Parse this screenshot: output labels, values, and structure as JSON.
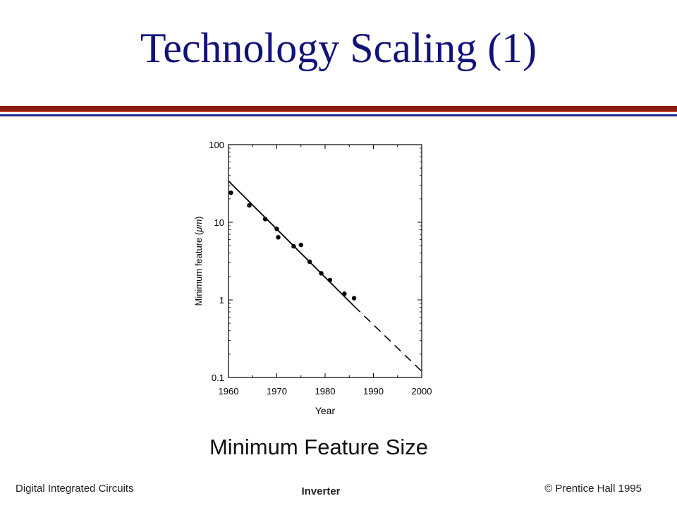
{
  "slide": {
    "title": "Technology Scaling (1)",
    "caption": "Minimum Feature Size"
  },
  "footer": {
    "left": "Digital Integrated Circuits",
    "center": "Inverter",
    "right": "© Prentice Hall 1995"
  },
  "colors": {
    "title": "#12127a",
    "rule_red": "#8a1c12",
    "rule_blue": "#1c2a8a"
  },
  "chart_data": {
    "type": "scatter",
    "xlabel": "Year",
    "ylabel_prefix": "Minimum feature (",
    "ylabel_unit": "μm",
    "ylabel_suffix": ")",
    "xlim": [
      1960,
      2000
    ],
    "ylim": [
      0.1,
      100
    ],
    "yscale": "log",
    "grid": false,
    "x_ticks": [
      1960,
      1970,
      1980,
      1990,
      2000
    ],
    "x_tick_labels": [
      "1960",
      "1970",
      "1980",
      "1990",
      "2000"
    ],
    "y_ticks": [
      0.1,
      1,
      10,
      100
    ],
    "y_tick_labels": [
      "0.1",
      "1",
      "10",
      "100"
    ],
    "points": [
      {
        "x": 1960.5,
        "y": 24
      },
      {
        "x": 1964.3,
        "y": 16.5
      },
      {
        "x": 1967.6,
        "y": 11
      },
      {
        "x": 1970.0,
        "y": 8.2
      },
      {
        "x": 1970.3,
        "y": 6.4
      },
      {
        "x": 1973.5,
        "y": 4.9
      },
      {
        "x": 1975.0,
        "y": 5.1
      },
      {
        "x": 1976.8,
        "y": 3.1
      },
      {
        "x": 1979.2,
        "y": 2.2
      },
      {
        "x": 1981.0,
        "y": 1.8
      },
      {
        "x": 1984.0,
        "y": 1.2
      },
      {
        "x": 1986.0,
        "y": 1.05
      }
    ],
    "fit_line": {
      "x": [
        1960,
        1986
      ],
      "y": [
        34,
        0.83
      ]
    },
    "projection_line": {
      "x": [
        1986,
        2000
      ],
      "y": [
        0.83,
        0.12
      ]
    }
  }
}
